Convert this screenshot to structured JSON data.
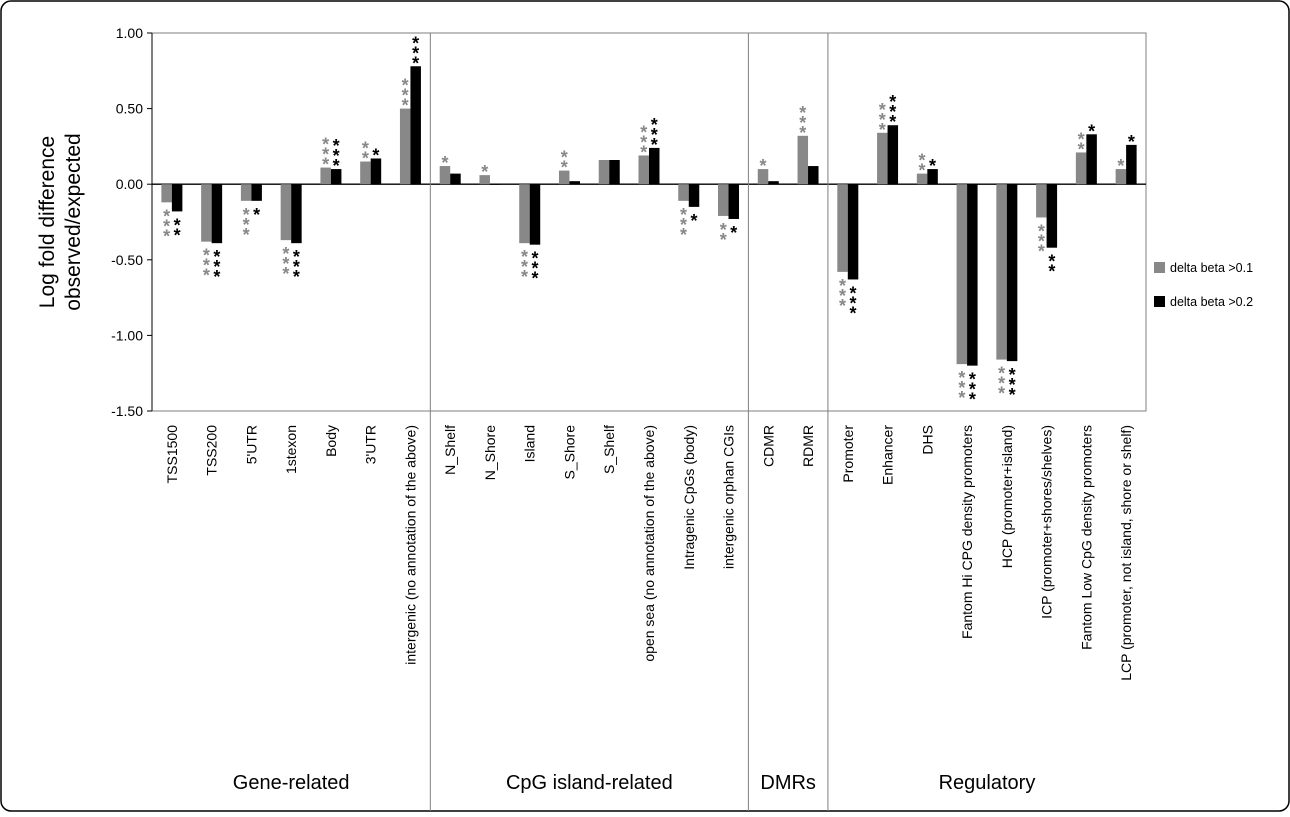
{
  "chart_data": {
    "type": "bar",
    "ylabel_lines": [
      "Log fold difference",
      "observed/expected"
    ],
    "ylim": [
      -1.5,
      1.0
    ],
    "yticks": [
      1.0,
      0.5,
      0.0,
      -0.5,
      -1.0,
      -1.5
    ],
    "ytick_labels": [
      "1.00",
      "0.50",
      "0.00",
      "-0.50",
      "-1.00",
      "-1.50"
    ],
    "categories": [
      "TSS1500",
      "TSS200",
      "5'UTR",
      "1stexon",
      "Body",
      "3'UTR",
      "intergenic (no annotation of the above)",
      "N_Shelf",
      "N_Shore",
      "Island",
      "S_Shore",
      "S_Shelf",
      "open sea (no annotation of the above)",
      "Intragenic CpGs (body)",
      "intergenic orphan CGIs",
      "CDMR",
      "RDMR",
      "Promoter",
      "Enhancer",
      "DHS",
      "Fantom Hi CPG density promoters",
      "HCP (promoter+island)",
      "ICP (promoter+shores/shelves)",
      "Fantom Low CpG density promoters",
      "LCP (promoter, not island, shore or shelf)"
    ],
    "groups": [
      {
        "label": "Gene-related",
        "count": 7
      },
      {
        "label": "CpG island-related",
        "count": 8
      },
      {
        "label": "DMRs",
        "count": 2
      },
      {
        "label": "Regulatory",
        "count": 8
      }
    ],
    "series": [
      {
        "name": "delta beta >0.1",
        "color": "#888888",
        "values": [
          -0.12,
          -0.38,
          -0.11,
          -0.37,
          0.11,
          0.15,
          0.5,
          0.12,
          0.06,
          -0.39,
          0.09,
          0.16,
          0.19,
          -0.11,
          -0.21,
          0.1,
          0.32,
          -0.58,
          0.34,
          0.07,
          -1.19,
          -1.16,
          -0.22,
          0.21,
          0.1
        ],
        "stars": [
          3,
          3,
          3,
          3,
          3,
          2,
          3,
          1,
          1,
          3,
          2,
          0,
          3,
          3,
          2,
          1,
          3,
          3,
          3,
          2,
          3,
          3,
          3,
          2,
          1
        ]
      },
      {
        "name": "delta beta >0.2",
        "color": "#000000",
        "values": [
          -0.18,
          -0.39,
          -0.11,
          -0.39,
          0.1,
          0.17,
          0.78,
          0.07,
          0.0,
          -0.4,
          0.02,
          0.16,
          0.24,
          -0.15,
          -0.23,
          0.02,
          0.12,
          -0.63,
          0.39,
          0.1,
          -1.2,
          -1.17,
          -0.42,
          0.33,
          0.26
        ],
        "stars": [
          2,
          3,
          1,
          3,
          3,
          1,
          3,
          0,
          0,
          3,
          0,
          0,
          3,
          1,
          1,
          0,
          0,
          3,
          3,
          1,
          3,
          3,
          2,
          1,
          1
        ]
      }
    ],
    "star_symbol": "*",
    "legend_position": "right"
  }
}
